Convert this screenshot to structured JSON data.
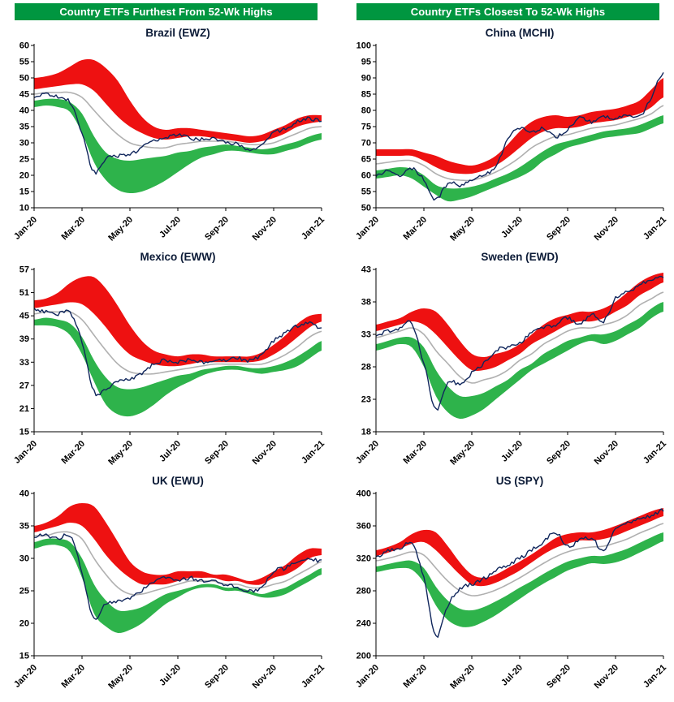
{
  "headers": {
    "left": "Country ETFs Furthest From 52-Wk Highs",
    "right": "Country ETFs Closest To 52-Wk Highs"
  },
  "colors": {
    "header_bg": "#009640",
    "header_text": "#ffffff",
    "red_band": "#ee1111",
    "green_band": "#2eb34b",
    "ma_line": "#b0b0b0",
    "price_line": "#10265c",
    "title_text": "#0b1a36",
    "axis": "#000000",
    "tick_text": "#000000"
  },
  "chart_data": [
    {
      "type": "area",
      "title": "Brazil (EWZ)",
      "panel": "furthest-from-52wk-highs",
      "ylim": [
        10,
        60
      ],
      "y_ticks": [
        10,
        15,
        20,
        25,
        30,
        35,
        40,
        45,
        50,
        55,
        60
      ],
      "x_tick_labels": [
        "Jan-20",
        "Mar-20",
        "May-20",
        "Jul-20",
        "Sep-20",
        "Nov-20",
        "Jan-21"
      ],
      "x_tick_index": [
        0,
        4,
        8,
        12,
        16,
        20,
        24
      ],
      "price": [
        44.5,
        45,
        44,
        42.5,
        33,
        21,
        25,
        26,
        26.5,
        28.5,
        30.5,
        31.5,
        32.5,
        31.5,
        31,
        31.5,
        30,
        29.5,
        28,
        29.5,
        33,
        34.5,
        36.5,
        37.5,
        36.5
      ],
      "bands": {
        "red_top": [
          50,
          50.5,
          51.5,
          53.5,
          55.5,
          55.5,
          53,
          49,
          43,
          38,
          35,
          34,
          34.5,
          34.5,
          34,
          33.5,
          33,
          32.5,
          32,
          32.5,
          34,
          35.5,
          37.5,
          38.5,
          38.5
        ],
        "red_bottom": [
          46.5,
          47,
          47.5,
          48,
          48,
          46,
          42,
          38,
          35,
          33,
          31.5,
          31,
          31.5,
          32,
          32,
          31.5,
          31,
          30.5,
          30,
          30.5,
          31.5,
          33,
          35,
          36,
          36.5
        ],
        "mid": [
          45,
          45.5,
          45.5,
          45.5,
          44,
          40,
          36,
          32.5,
          30,
          29,
          28.5,
          28.5,
          29.5,
          30,
          30.5,
          30.5,
          30.5,
          30,
          29.5,
          29.5,
          30,
          31.5,
          33,
          34.5,
          35
        ],
        "green_top": [
          43,
          43.5,
          43.5,
          42.5,
          39,
          32,
          27,
          25,
          24.5,
          25,
          25.5,
          26,
          27,
          27.5,
          28.5,
          29,
          29.5,
          29,
          28.5,
          28,
          28.5,
          29.5,
          30.5,
          32,
          33
        ],
        "green_bottom": [
          41,
          41.5,
          41,
          39.5,
          33,
          24,
          18.5,
          15.5,
          14.5,
          15,
          16.5,
          18.5,
          21,
          23.5,
          25.5,
          26.5,
          27.5,
          27.5,
          27,
          26.5,
          26.5,
          27.5,
          28.5,
          30,
          31
        ]
      }
    },
    {
      "type": "area",
      "title": "China (MCHI)",
      "panel": "closest-to-52wk-highs",
      "ylim": [
        50,
        100
      ],
      "y_ticks": [
        50,
        55,
        60,
        65,
        70,
        75,
        80,
        85,
        90,
        95,
        100
      ],
      "x_tick_labels": [
        "Jan-20",
        "Mar-20",
        "May-20",
        "Jul-20",
        "Sep-20",
        "Nov-20",
        "Jan-21"
      ],
      "x_tick_index": [
        0,
        4,
        8,
        12,
        16,
        20,
        24
      ],
      "price": [
        60,
        61.5,
        60,
        62,
        58.5,
        52.5,
        57.5,
        57,
        58.5,
        60,
        63,
        71,
        74.5,
        73.5,
        74.5,
        72,
        74,
        77.5,
        76.5,
        78,
        77.5,
        78.5,
        78,
        84,
        92
      ],
      "bands": {
        "red_top": [
          68,
          68,
          68,
          68,
          67,
          66,
          64.5,
          63.5,
          63,
          64,
          66,
          69.5,
          73.5,
          76.5,
          78,
          78.5,
          78,
          78.5,
          79.5,
          80,
          80.5,
          81.5,
          83,
          86.5,
          90
        ],
        "red_bottom": [
          66,
          66,
          66,
          66,
          64.5,
          62.5,
          61,
          60.5,
          60.5,
          61.5,
          63,
          65.5,
          68.5,
          71.5,
          73.5,
          74.5,
          74.5,
          75,
          76,
          76.5,
          77,
          78,
          79,
          81,
          84
        ],
        "mid": [
          63.5,
          64,
          64.5,
          64.5,
          63,
          60.5,
          59,
          58.5,
          58.5,
          59.5,
          61,
          63,
          65.5,
          68.5,
          70.5,
          72,
          72.5,
          73.5,
          74.5,
          75,
          75.5,
          76.5,
          77.5,
          79,
          81.5
        ],
        "green_top": [
          61.5,
          62,
          62.5,
          62,
          60,
          57,
          56,
          56,
          56.5,
          57.5,
          59,
          60.5,
          62.5,
          65,
          67.5,
          69.5,
          70.5,
          71.5,
          72.5,
          73.5,
          74,
          74.5,
          75.5,
          77,
          78.5
        ],
        "green_bottom": [
          59,
          59.5,
          60,
          59,
          56.5,
          54,
          52,
          52.5,
          53.5,
          55,
          56.5,
          58,
          59.5,
          61.5,
          64.5,
          66.5,
          68.5,
          69.5,
          70.5,
          71.5,
          72,
          72.5,
          73,
          74.5,
          76
        ]
      }
    },
    {
      "type": "area",
      "title": "Mexico (EWW)",
      "panel": "furthest-from-52wk-highs",
      "ylim": [
        15,
        57
      ],
      "y_ticks": [
        15,
        21,
        27,
        33,
        39,
        45,
        51,
        57
      ],
      "x_tick_labels": [
        "Jan-20",
        "Mar-20",
        "May-20",
        "Jul-20",
        "Sep-20",
        "Nov-20",
        "Jan-21"
      ],
      "x_tick_index": [
        0,
        4,
        8,
        12,
        16,
        20,
        24
      ],
      "price": [
        46.5,
        46,
        45.5,
        46,
        38,
        25.5,
        26,
        28,
        28.5,
        30,
        32.5,
        33.5,
        33,
        33.5,
        33,
        33.5,
        33.5,
        34,
        33.5,
        35,
        38.5,
        40.5,
        42.5,
        43,
        41.5
      ],
      "bands": {
        "red_top": [
          49,
          49.5,
          51,
          53.5,
          55,
          55,
          52,
          47.5,
          42.5,
          38.5,
          36,
          35,
          34.5,
          35,
          35,
          34.5,
          34.5,
          34.5,
          34.5,
          35.5,
          37.5,
          40,
          43,
          45,
          45.5
        ],
        "red_bottom": [
          47,
          47.5,
          48,
          48.5,
          48,
          45.5,
          42,
          38,
          35,
          33.5,
          32.5,
          32,
          32,
          32.5,
          33,
          33,
          33,
          33,
          33,
          33.5,
          35,
          37,
          39.5,
          42,
          43.5
        ],
        "mid": [
          45.5,
          46,
          46,
          46,
          44,
          40,
          36,
          32.5,
          30.5,
          30,
          30,
          30.5,
          31,
          31.5,
          32,
          32.5,
          32.5,
          32.5,
          32.5,
          32.5,
          33.5,
          35,
          37,
          39.5,
          41
        ],
        "green_top": [
          44,
          44.5,
          44,
          43,
          39.5,
          33.5,
          29,
          26.5,
          26,
          26.5,
          27.5,
          28.5,
          29.5,
          30,
          31,
          31.5,
          32,
          32,
          31.5,
          31.5,
          32,
          33,
          34.5,
          36.5,
          38.5
        ],
        "green_bottom": [
          42.5,
          42.5,
          42,
          40,
          35,
          28,
          22,
          19.5,
          19,
          20,
          22,
          24.5,
          26.5,
          28,
          29.5,
          30.5,
          31,
          31,
          30.5,
          30,
          30.5,
          31,
          32,
          34,
          36
        ]
      }
    },
    {
      "type": "area",
      "title": "Sweden (EWD)",
      "panel": "closest-to-52wk-highs",
      "ylim": [
        18,
        43
      ],
      "y_ticks": [
        18,
        23,
        28,
        33,
        38,
        43
      ],
      "x_tick_labels": [
        "Jan-20",
        "Mar-20",
        "May-20",
        "Jul-20",
        "Sep-20",
        "Nov-20",
        "Jan-21"
      ],
      "x_tick_index": [
        0,
        4,
        8,
        12,
        16,
        20,
        24
      ],
      "price": [
        33,
        33.5,
        34,
        34.5,
        28.5,
        21.5,
        25.5,
        25.5,
        27,
        28.5,
        30.5,
        31,
        31.5,
        33.5,
        34,
        34.5,
        35.5,
        34.5,
        36,
        35,
        38.5,
        39.5,
        40.5,
        41.5,
        42
      ],
      "bands": {
        "red_top": [
          34.5,
          35,
          35.5,
          36.5,
          37,
          36.5,
          34.5,
          32,
          30,
          29.5,
          30,
          30.5,
          31.5,
          33,
          34.5,
          35.5,
          36,
          36.5,
          36.5,
          37,
          38,
          39.5,
          41,
          42,
          42.5
        ],
        "red_bottom": [
          33.5,
          34,
          34.5,
          35,
          34.5,
          33,
          31,
          29,
          27.5,
          27.5,
          28,
          29,
          30,
          31.5,
          32.5,
          33.5,
          34.5,
          35,
          35,
          35.5,
          36.5,
          37.5,
          39,
          40,
          41
        ],
        "mid": [
          32.5,
          33,
          33.5,
          34,
          33,
          30.5,
          28.5,
          26.5,
          25.5,
          26,
          26.5,
          27.5,
          29,
          30,
          31.5,
          32.5,
          33.5,
          34,
          34,
          34.5,
          35,
          36,
          37.5,
          38.5,
          39.5
        ],
        "green_top": [
          31.5,
          32,
          32.5,
          32.5,
          31,
          27.5,
          25,
          23.5,
          23.5,
          24,
          25,
          26,
          27.5,
          28.5,
          30,
          31,
          32,
          32.5,
          33,
          33,
          33.5,
          34.5,
          35.5,
          37,
          38
        ],
        "green_bottom": [
          30.5,
          31,
          31.5,
          31,
          28,
          23.5,
          21,
          20,
          20.5,
          21.5,
          23,
          24.5,
          26,
          27.5,
          28.5,
          29.5,
          30.5,
          31.5,
          32,
          31.5,
          32,
          33,
          34,
          35.5,
          36.5
        ]
      }
    },
    {
      "type": "area",
      "title": "UK (EWU)",
      "panel": "furthest-from-52wk-highs",
      "ylim": [
        15,
        40
      ],
      "y_ticks": [
        15,
        20,
        25,
        30,
        35,
        40
      ],
      "x_tick_labels": [
        "Jan-20",
        "Mar-20",
        "May-20",
        "Jul-20",
        "Sep-20",
        "Nov-20",
        "Jan-21"
      ],
      "x_tick_index": [
        0,
        4,
        8,
        12,
        16,
        20,
        24
      ],
      "price": [
        33.5,
        33.5,
        33,
        33.5,
        28,
        20.5,
        23,
        23.5,
        24,
        25,
        26.5,
        27,
        26.5,
        27,
        26.5,
        26.5,
        26,
        25.5,
        25,
        25.5,
        28,
        28.5,
        29.5,
        30,
        29.5
      ],
      "bands": {
        "red_top": [
          35,
          35.5,
          36.5,
          38,
          38.5,
          38,
          35.5,
          32.5,
          29.5,
          28,
          27.5,
          27.5,
          28,
          28,
          28,
          27.5,
          27.5,
          27,
          26.5,
          27,
          28,
          29,
          30.5,
          31.5,
          31.5
        ],
        "red_bottom": [
          34,
          34.5,
          35,
          35.5,
          35,
          33,
          30.5,
          28.5,
          27,
          26,
          26,
          26,
          26.5,
          27,
          27,
          27,
          26.5,
          26.5,
          26,
          26,
          27,
          27.5,
          28.5,
          30,
          30.5
        ],
        "mid": [
          33.5,
          33.5,
          34,
          34,
          33,
          30,
          27.5,
          25.5,
          24.5,
          24.5,
          25,
          25.5,
          26,
          26.5,
          26.5,
          26.5,
          26,
          26,
          25.5,
          25.5,
          26,
          26.5,
          27.5,
          28.5,
          29.5
        ],
        "green_top": [
          32.5,
          33,
          33,
          32.5,
          30,
          26,
          23.5,
          22,
          22,
          22.5,
          23.5,
          24.5,
          25,
          25.5,
          26,
          26,
          25.5,
          25.5,
          25,
          24.5,
          25,
          25.5,
          26.5,
          27.5,
          28.5
        ],
        "green_bottom": [
          31.5,
          32,
          32,
          31,
          27,
          21.5,
          19.5,
          18.5,
          19,
          20,
          21.5,
          23,
          24,
          25,
          25.5,
          25.5,
          25,
          25,
          24.5,
          24,
          24,
          24.5,
          25.5,
          26.5,
          27.5
        ]
      }
    },
    {
      "type": "area",
      "title": "US (SPY)",
      "panel": "closest-to-52wk-highs",
      "ylim": [
        200,
        400
      ],
      "y_ticks": [
        200,
        240,
        280,
        320,
        360,
        400
      ],
      "x_tick_labels": [
        "Jan-20",
        "Mar-20",
        "May-20",
        "Jul-20",
        "Sep-20",
        "Nov-20",
        "Jan-21"
      ],
      "x_tick_index": [
        0,
        4,
        8,
        12,
        16,
        20,
        24
      ],
      "price": [
        322,
        330,
        332,
        337,
        296,
        225,
        262,
        282,
        288,
        295,
        305,
        312,
        320,
        330,
        340,
        352,
        335,
        342,
        345,
        330,
        358,
        363,
        370,
        372,
        380
      ],
      "bands": {
        "red_top": [
          330,
          334,
          340,
          350,
          355,
          352,
          335,
          315,
          300,
          296,
          300,
          308,
          316,
          325,
          335,
          345,
          350,
          352,
          352,
          355,
          360,
          366,
          372,
          378,
          382
        ],
        "red_bottom": [
          323,
          327,
          332,
          338,
          340,
          330,
          315,
          300,
          288,
          286,
          290,
          297,
          305,
          315,
          325,
          333,
          338,
          342,
          342,
          344,
          348,
          354,
          360,
          366,
          372
        ],
        "mid": [
          317,
          320,
          324,
          328,
          324,
          308,
          292,
          280,
          274,
          276,
          281,
          288,
          296,
          305,
          314,
          322,
          328,
          332,
          334,
          335,
          339,
          344,
          351,
          357,
          363
        ],
        "green_top": [
          310,
          313,
          316,
          317,
          308,
          285,
          268,
          258,
          256,
          260,
          267,
          275,
          284,
          292,
          301,
          309,
          316,
          320,
          323,
          323,
          327,
          332,
          339,
          346,
          352
        ],
        "green_bottom": [
          303,
          306,
          308,
          306,
          290,
          262,
          244,
          236,
          236,
          242,
          250,
          260,
          270,
          280,
          289,
          297,
          305,
          310,
          314,
          313,
          315,
          320,
          327,
          334,
          341
        ]
      }
    }
  ]
}
